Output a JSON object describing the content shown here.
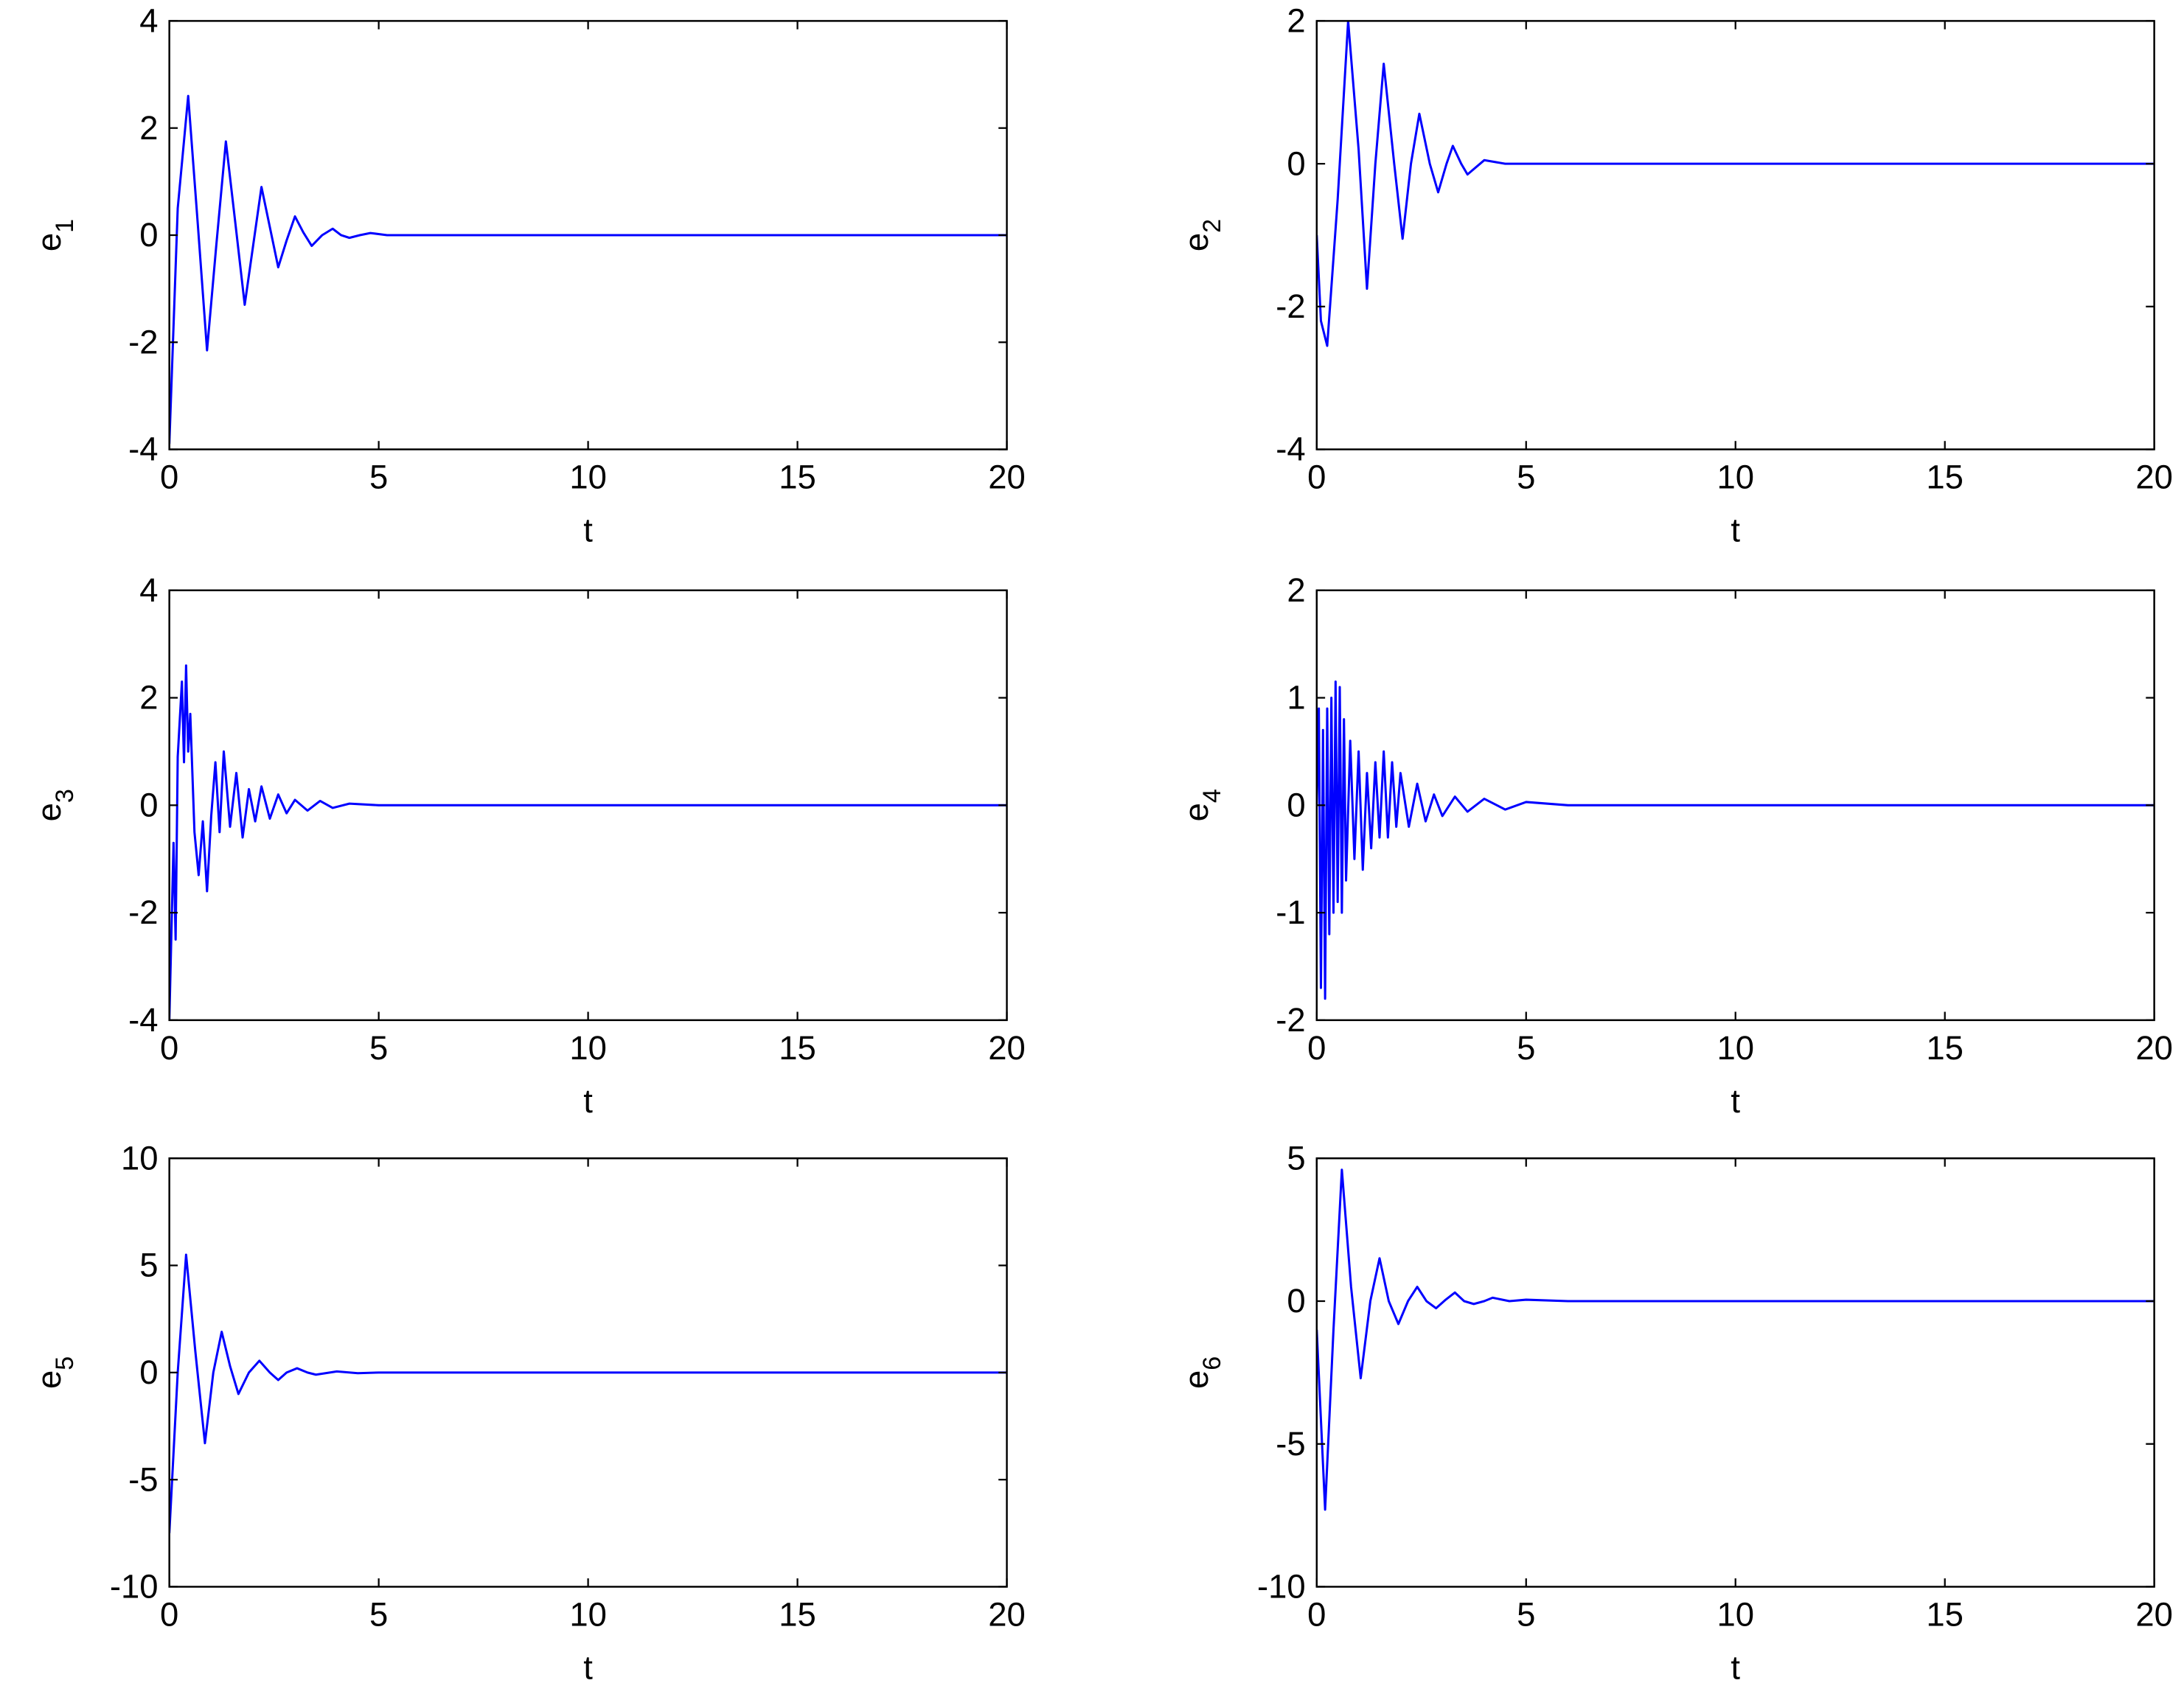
{
  "chart_data": [
    {
      "type": "line",
      "xlabel": "t",
      "ylabel": "e",
      "ylabel_sub": "1",
      "xlim": [
        0,
        20
      ],
      "xticks": [
        0,
        5,
        10,
        15,
        20
      ],
      "ylim": [
        -4,
        4
      ],
      "yticks": [
        -4,
        -2,
        0,
        2,
        4
      ],
      "x": [
        0,
        0.2,
        0.45,
        0.68,
        0.9,
        1.12,
        1.35,
        1.58,
        1.8,
        2.0,
        2.2,
        2.4,
        2.6,
        2.8,
        3.0,
        3.2,
        3.4,
        3.65,
        3.9,
        4.1,
        4.3,
        4.55,
        4.8,
        5.2,
        6,
        20
      ],
      "series": [
        {
          "color": "#0000ff",
          "values": [
            -3.9,
            0.5,
            2.6,
            0.2,
            -2.15,
            -0.2,
            1.75,
            0.2,
            -1.3,
            -0.2,
            0.9,
            0.15,
            -0.6,
            -0.1,
            0.35,
            0.05,
            -0.2,
            0,
            0.12,
            0,
            -0.05,
            0,
            0.04,
            0,
            0,
            0
          ]
        }
      ]
    },
    {
      "type": "line",
      "xlabel": "t",
      "ylabel": "e",
      "ylabel_sub": "2",
      "xlim": [
        0,
        20
      ],
      "xticks": [
        0,
        5,
        10,
        15,
        20
      ],
      "ylim": [
        -4,
        2
      ],
      "yticks": [
        -4,
        -2,
        0,
        2
      ],
      "x": [
        0,
        0.1,
        0.25,
        0.5,
        0.75,
        1.0,
        1.2,
        1.4,
        1.6,
        1.85,
        2.05,
        2.25,
        2.45,
        2.7,
        2.9,
        3.1,
        3.25,
        3.45,
        3.6,
        4.0,
        4.5,
        5,
        20
      ],
      "series": [
        {
          "color": "#0000ff",
          "values": [
            -1,
            -2.2,
            -2.55,
            -0.5,
            2.0,
            0.2,
            -1.75,
            0,
            1.4,
            0,
            -1.05,
            0,
            0.7,
            0,
            -0.4,
            0,
            0.25,
            0,
            -0.15,
            0.05,
            0,
            0,
            0
          ]
        }
      ]
    },
    {
      "type": "line",
      "xlabel": "t",
      "ylabel": "e",
      "ylabel_sub": "3",
      "xlim": [
        0,
        20
      ],
      "xticks": [
        0,
        5,
        10,
        15,
        20
      ],
      "ylim": [
        -4,
        4
      ],
      "yticks": [
        -4,
        -2,
        0,
        2,
        4
      ],
      "x": [
        0,
        0.1,
        0.15,
        0.2,
        0.3,
        0.35,
        0.4,
        0.45,
        0.5,
        0.6,
        0.7,
        0.8,
        0.9,
        1.0,
        1.1,
        1.2,
        1.3,
        1.45,
        1.6,
        1.75,
        1.9,
        2.05,
        2.2,
        2.4,
        2.6,
        2.8,
        3.0,
        3.3,
        3.6,
        3.9,
        4.3,
        5,
        20
      ],
      "series": [
        {
          "color": "#0000ff",
          "values": [
            -4,
            -0.7,
            -2.5,
            0.9,
            2.3,
            0.8,
            2.6,
            1.0,
            1.7,
            -0.5,
            -1.3,
            -0.3,
            -1.6,
            -0.2,
            0.8,
            -0.5,
            1.0,
            -0.4,
            0.6,
            -0.6,
            0.3,
            -0.3,
            0.35,
            -0.25,
            0.2,
            -0.15,
            0.1,
            -0.1,
            0.08,
            -0.05,
            0.03,
            0,
            0
          ]
        }
      ]
    },
    {
      "type": "line",
      "xlabel": "t",
      "ylabel": "e",
      "ylabel_sub": "4",
      "xlim": [
        0,
        20
      ],
      "xticks": [
        0,
        5,
        10,
        15,
        20
      ],
      "ylim": [
        -2,
        2
      ],
      "yticks": [
        -2,
        -1,
        0,
        1,
        2
      ],
      "x": [
        0,
        0.05,
        0.1,
        0.15,
        0.2,
        0.25,
        0.3,
        0.35,
        0.4,
        0.45,
        0.5,
        0.55,
        0.6,
        0.65,
        0.7,
        0.8,
        0.9,
        1.0,
        1.1,
        1.2,
        1.3,
        1.4,
        1.5,
        1.6,
        1.7,
        1.8,
        1.9,
        2.0,
        2.2,
        2.4,
        2.6,
        2.8,
        3.0,
        3.3,
        3.6,
        4.0,
        4.5,
        5,
        6,
        20
      ],
      "series": [
        {
          "color": "#0000ff",
          "values": [
            0,
            0.9,
            -1.7,
            0.7,
            -1.8,
            0.9,
            -1.2,
            1.0,
            -1.0,
            1.15,
            -0.9,
            1.1,
            -1.0,
            0.8,
            -0.7,
            0.6,
            -0.5,
            0.5,
            -0.6,
            0.3,
            -0.4,
            0.4,
            -0.3,
            0.5,
            -0.3,
            0.4,
            -0.2,
            0.3,
            -0.2,
            0.2,
            -0.15,
            0.1,
            -0.1,
            0.08,
            -0.06,
            0.06,
            -0.04,
            0.03,
            0,
            0
          ]
        }
      ]
    },
    {
      "type": "line",
      "xlabel": "t",
      "ylabel": "e",
      "ylabel_sub": "5",
      "xlim": [
        0,
        20
      ],
      "xticks": [
        0,
        5,
        10,
        15,
        20
      ],
      "ylim": [
        -10,
        10
      ],
      "yticks": [
        -10,
        -5,
        0,
        5,
        10
      ],
      "x": [
        0,
        0.2,
        0.4,
        0.62,
        0.85,
        1.05,
        1.25,
        1.45,
        1.65,
        1.9,
        2.15,
        2.4,
        2.6,
        2.8,
        3.05,
        3.3,
        3.5,
        4,
        4.5,
        5,
        20
      ],
      "series": [
        {
          "color": "#0000ff",
          "values": [
            -7.5,
            0,
            5.5,
            1,
            -3.3,
            0,
            1.9,
            0.3,
            -1.0,
            0,
            0.55,
            0,
            -0.35,
            0,
            0.2,
            0,
            -0.1,
            0.05,
            -0.03,
            0,
            0
          ]
        }
      ]
    },
    {
      "type": "line",
      "xlabel": "t",
      "ylabel": "e",
      "ylabel_sub": "6",
      "xlim": [
        0,
        20
      ],
      "xticks": [
        0,
        5,
        10,
        15,
        20
      ],
      "ylim": [
        -10,
        5
      ],
      "yticks": [
        -10,
        -5,
        0,
        5
      ],
      "x": [
        0,
        0.2,
        0.4,
        0.6,
        0.82,
        1.05,
        1.28,
        1.5,
        1.72,
        1.95,
        2.18,
        2.4,
        2.62,
        2.85,
        3.08,
        3.3,
        3.52,
        3.75,
        4.0,
        4.2,
        4.6,
        5,
        6,
        20
      ],
      "series": [
        {
          "color": "#0000ff",
          "values": [
            -1,
            -7.3,
            -1,
            4.6,
            0.5,
            -2.7,
            0,
            1.5,
            0,
            -0.8,
            0,
            0.5,
            0,
            -0.25,
            0.05,
            0.3,
            0,
            -0.1,
            0,
            0.12,
            0,
            0.05,
            0,
            0
          ]
        }
      ]
    }
  ]
}
